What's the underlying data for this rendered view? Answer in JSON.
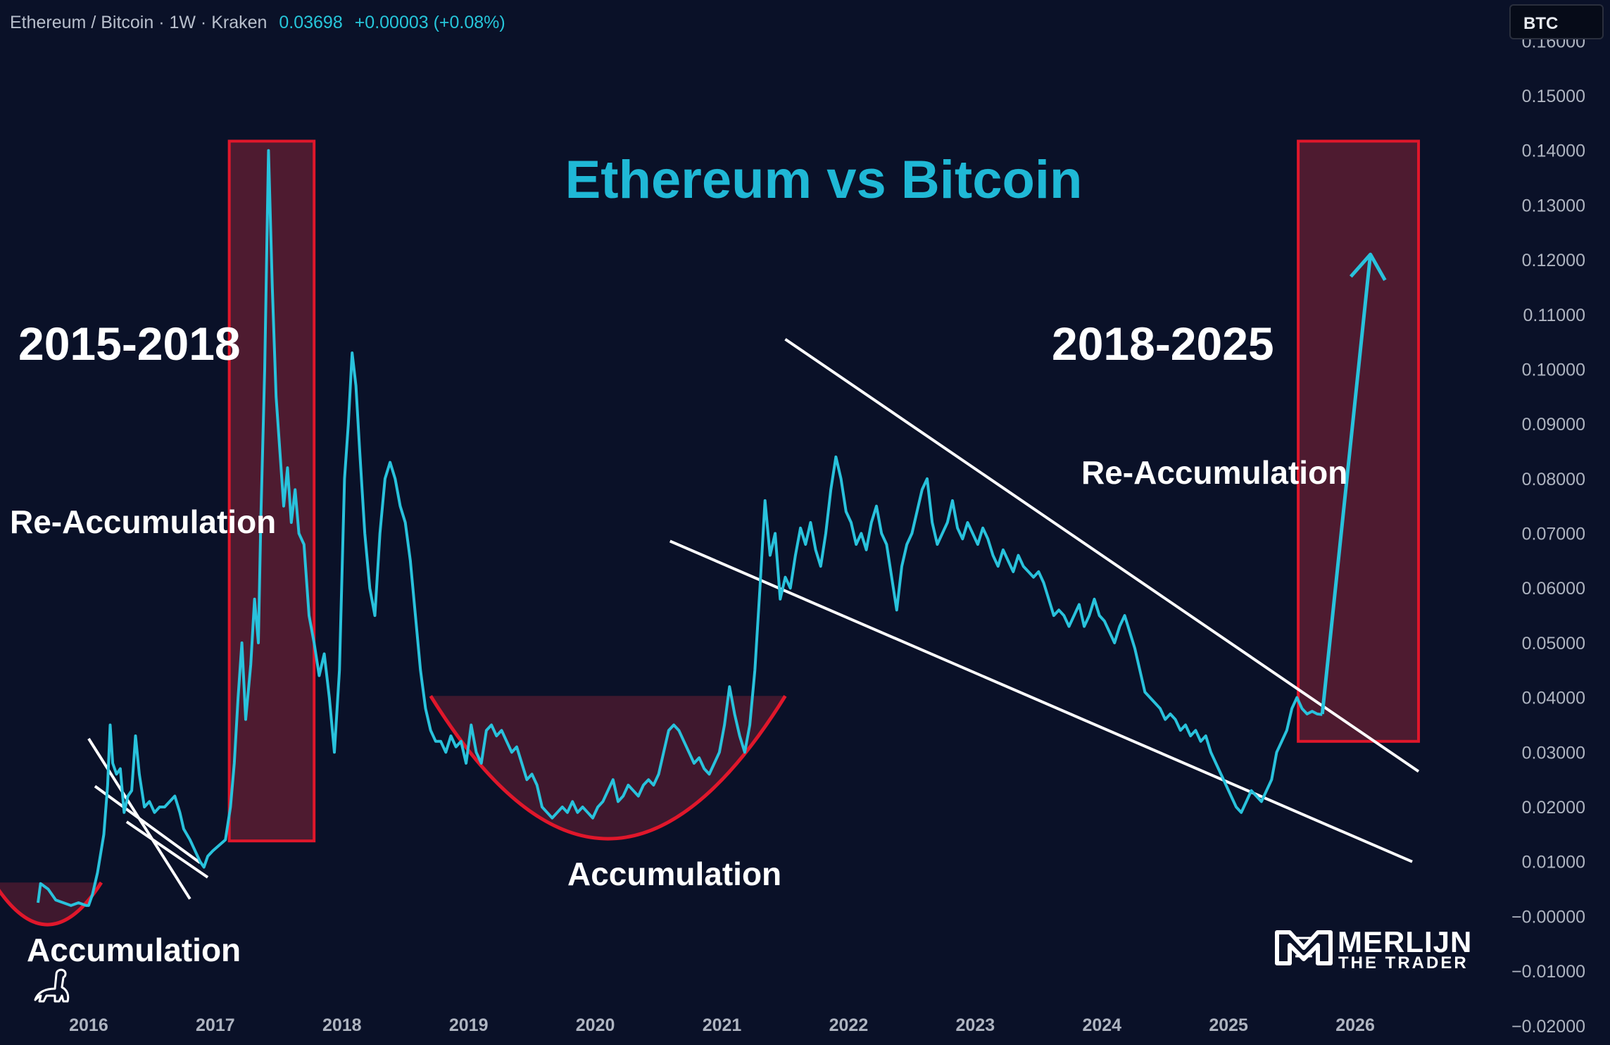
{
  "header": {
    "symbol_label": "Ethereum / Bitcoin · 1W · Kraken",
    "price": "0.03698",
    "change": "+0.00003 (+0.08%)",
    "currency_badge": "BTC"
  },
  "annotations": {
    "title": "Ethereum vs Bitcoin",
    "period_left": "2015-2018",
    "period_right": "2018-2025",
    "reacc_left": "Re-Accumulation",
    "reacc_right": "Re-Accumulation",
    "acc_left": "Accumulation",
    "acc_mid": "Accumulation"
  },
  "watermark": {
    "name": "MERLIJN",
    "subtitle": "THE TRADER"
  },
  "colors": {
    "background": "#0a1128",
    "line": "#29c2dc",
    "title": "#1fb8d6",
    "highlight_stroke": "#e0172b",
    "highlight_fill": "#6b1f33",
    "trendline": "#ffffff"
  },
  "chart_data": {
    "type": "line",
    "title": "Ethereum vs Bitcoin",
    "xlabel": "",
    "ylabel": "",
    "x_ticks": [
      "2016",
      "2017",
      "2018",
      "2019",
      "2020",
      "2021",
      "2022",
      "2023",
      "2024",
      "2025",
      "2026"
    ],
    "y_ticks": [
      "0.16000",
      "0.15000",
      "0.14000",
      "0.13000",
      "0.12000",
      "0.11000",
      "0.10000",
      "0.09000",
      "0.08000",
      "0.07000",
      "0.06000",
      "0.05000",
      "0.04000",
      "0.03000",
      "0.02000",
      "0.01000",
      "−0.00000",
      "−0.01000",
      "−0.02000"
    ],
    "xlim": [
      2015.3,
      2026.9
    ],
    "ylim": [
      -0.0235,
      0.1675
    ],
    "grid": false,
    "series": [
      {
        "values": [
          [
            2015.6,
            0.0025
          ],
          [
            2015.62,
            0.006
          ],
          [
            2015.68,
            0.005
          ],
          [
            2015.74,
            0.003
          ],
          [
            2015.8,
            0.0025
          ],
          [
            2015.86,
            0.002
          ],
          [
            2015.92,
            0.0025
          ],
          [
            2015.98,
            0.002
          ],
          [
            2016.0,
            0.002
          ],
          [
            2016.03,
            0.004
          ],
          [
            2016.07,
            0.008
          ],
          [
            2016.12,
            0.015
          ],
          [
            2016.15,
            0.024
          ],
          [
            2016.17,
            0.035
          ],
          [
            2016.19,
            0.028
          ],
          [
            2016.22,
            0.026
          ],
          [
            2016.25,
            0.027
          ],
          [
            2016.28,
            0.019
          ],
          [
            2016.31,
            0.022
          ],
          [
            2016.34,
            0.023
          ],
          [
            2016.37,
            0.033
          ],
          [
            2016.4,
            0.026
          ],
          [
            2016.44,
            0.02
          ],
          [
            2016.48,
            0.021
          ],
          [
            2016.52,
            0.019
          ],
          [
            2016.56,
            0.02
          ],
          [
            2016.6,
            0.02
          ],
          [
            2016.64,
            0.021
          ],
          [
            2016.68,
            0.022
          ],
          [
            2016.72,
            0.019
          ],
          [
            2016.75,
            0.016
          ],
          [
            2016.8,
            0.014
          ],
          [
            2016.84,
            0.012
          ],
          [
            2016.88,
            0.01
          ],
          [
            2016.91,
            0.009
          ],
          [
            2016.94,
            0.011
          ],
          [
            2016.98,
            0.012
          ],
          [
            2017.03,
            0.013
          ],
          [
            2017.08,
            0.014
          ],
          [
            2017.12,
            0.02
          ],
          [
            2017.15,
            0.028
          ],
          [
            2017.18,
            0.04
          ],
          [
            2017.21,
            0.05
          ],
          [
            2017.24,
            0.036
          ],
          [
            2017.28,
            0.046
          ],
          [
            2017.31,
            0.058
          ],
          [
            2017.34,
            0.05
          ],
          [
            2017.36,
            0.073
          ],
          [
            2017.39,
            0.1
          ],
          [
            2017.42,
            0.14
          ],
          [
            2017.45,
            0.115
          ],
          [
            2017.48,
            0.095
          ],
          [
            2017.51,
            0.085
          ],
          [
            2017.54,
            0.075
          ],
          [
            2017.57,
            0.082
          ],
          [
            2017.6,
            0.072
          ],
          [
            2017.63,
            0.078
          ],
          [
            2017.66,
            0.07
          ],
          [
            2017.7,
            0.068
          ],
          [
            2017.74,
            0.055
          ],
          [
            2017.78,
            0.05
          ],
          [
            2017.82,
            0.044
          ],
          [
            2017.86,
            0.048
          ],
          [
            2017.9,
            0.04
          ],
          [
            2017.94,
            0.03
          ],
          [
            2017.98,
            0.045
          ],
          [
            2018.02,
            0.08
          ],
          [
            2018.05,
            0.09
          ],
          [
            2018.08,
            0.103
          ],
          [
            2018.11,
            0.097
          ],
          [
            2018.14,
            0.085
          ],
          [
            2018.18,
            0.07
          ],
          [
            2018.22,
            0.06
          ],
          [
            2018.26,
            0.055
          ],
          [
            2018.3,
            0.07
          ],
          [
            2018.34,
            0.08
          ],
          [
            2018.38,
            0.083
          ],
          [
            2018.42,
            0.08
          ],
          [
            2018.46,
            0.075
          ],
          [
            2018.5,
            0.072
          ],
          [
            2018.54,
            0.065
          ],
          [
            2018.58,
            0.055
          ],
          [
            2018.62,
            0.045
          ],
          [
            2018.66,
            0.038
          ],
          [
            2018.7,
            0.034
          ],
          [
            2018.74,
            0.032
          ],
          [
            2018.78,
            0.032
          ],
          [
            2018.82,
            0.03
          ],
          [
            2018.86,
            0.033
          ],
          [
            2018.9,
            0.031
          ],
          [
            2018.94,
            0.032
          ],
          [
            2018.98,
            0.028
          ],
          [
            2019.02,
            0.035
          ],
          [
            2019.06,
            0.03
          ],
          [
            2019.1,
            0.028
          ],
          [
            2019.14,
            0.034
          ],
          [
            2019.18,
            0.035
          ],
          [
            2019.22,
            0.033
          ],
          [
            2019.26,
            0.034
          ],
          [
            2019.3,
            0.032
          ],
          [
            2019.34,
            0.03
          ],
          [
            2019.38,
            0.031
          ],
          [
            2019.42,
            0.028
          ],
          [
            2019.46,
            0.025
          ],
          [
            2019.5,
            0.026
          ],
          [
            2019.54,
            0.024
          ],
          [
            2019.58,
            0.02
          ],
          [
            2019.62,
            0.019
          ],
          [
            2019.66,
            0.018
          ],
          [
            2019.7,
            0.019
          ],
          [
            2019.74,
            0.02
          ],
          [
            2019.78,
            0.019
          ],
          [
            2019.82,
            0.021
          ],
          [
            2019.86,
            0.019
          ],
          [
            2019.9,
            0.02
          ],
          [
            2019.94,
            0.019
          ],
          [
            2019.98,
            0.018
          ],
          [
            2020.02,
            0.02
          ],
          [
            2020.06,
            0.021
          ],
          [
            2020.1,
            0.023
          ],
          [
            2020.14,
            0.025
          ],
          [
            2020.18,
            0.021
          ],
          [
            2020.22,
            0.022
          ],
          [
            2020.26,
            0.024
          ],
          [
            2020.3,
            0.023
          ],
          [
            2020.34,
            0.022
          ],
          [
            2020.38,
            0.024
          ],
          [
            2020.42,
            0.025
          ],
          [
            2020.46,
            0.024
          ],
          [
            2020.5,
            0.026
          ],
          [
            2020.54,
            0.03
          ],
          [
            2020.58,
            0.034
          ],
          [
            2020.62,
            0.035
          ],
          [
            2020.66,
            0.034
          ],
          [
            2020.7,
            0.032
          ],
          [
            2020.74,
            0.03
          ],
          [
            2020.78,
            0.028
          ],
          [
            2020.82,
            0.029
          ],
          [
            2020.86,
            0.027
          ],
          [
            2020.9,
            0.026
          ],
          [
            2020.94,
            0.028
          ],
          [
            2020.98,
            0.03
          ],
          [
            2021.02,
            0.035
          ],
          [
            2021.06,
            0.042
          ],
          [
            2021.1,
            0.037
          ],
          [
            2021.14,
            0.033
          ],
          [
            2021.18,
            0.03
          ],
          [
            2021.22,
            0.035
          ],
          [
            2021.26,
            0.045
          ],
          [
            2021.3,
            0.06
          ],
          [
            2021.34,
            0.076
          ],
          [
            2021.38,
            0.066
          ],
          [
            2021.42,
            0.07
          ],
          [
            2021.46,
            0.058
          ],
          [
            2021.5,
            0.062
          ],
          [
            2021.54,
            0.06
          ],
          [
            2021.58,
            0.066
          ],
          [
            2021.62,
            0.071
          ],
          [
            2021.66,
            0.068
          ],
          [
            2021.7,
            0.072
          ],
          [
            2021.74,
            0.067
          ],
          [
            2021.78,
            0.064
          ],
          [
            2021.82,
            0.07
          ],
          [
            2021.86,
            0.078
          ],
          [
            2021.9,
            0.084
          ],
          [
            2021.94,
            0.08
          ],
          [
            2021.98,
            0.074
          ],
          [
            2022.02,
            0.072
          ],
          [
            2022.06,
            0.068
          ],
          [
            2022.1,
            0.07
          ],
          [
            2022.14,
            0.067
          ],
          [
            2022.18,
            0.072
          ],
          [
            2022.22,
            0.075
          ],
          [
            2022.26,
            0.07
          ],
          [
            2022.3,
            0.068
          ],
          [
            2022.34,
            0.062
          ],
          [
            2022.38,
            0.056
          ],
          [
            2022.42,
            0.064
          ],
          [
            2022.46,
            0.068
          ],
          [
            2022.5,
            0.07
          ],
          [
            2022.54,
            0.074
          ],
          [
            2022.58,
            0.078
          ],
          [
            2022.62,
            0.08
          ],
          [
            2022.66,
            0.072
          ],
          [
            2022.7,
            0.068
          ],
          [
            2022.74,
            0.07
          ],
          [
            2022.78,
            0.072
          ],
          [
            2022.82,
            0.076
          ],
          [
            2022.86,
            0.071
          ],
          [
            2022.9,
            0.069
          ],
          [
            2022.94,
            0.072
          ],
          [
            2022.98,
            0.07
          ],
          [
            2023.02,
            0.068
          ],
          [
            2023.06,
            0.071
          ],
          [
            2023.1,
            0.069
          ],
          [
            2023.14,
            0.066
          ],
          [
            2023.18,
            0.064
          ],
          [
            2023.22,
            0.067
          ],
          [
            2023.26,
            0.065
          ],
          [
            2023.3,
            0.063
          ],
          [
            2023.34,
            0.066
          ],
          [
            2023.38,
            0.064
          ],
          [
            2023.42,
            0.063
          ],
          [
            2023.46,
            0.062
          ],
          [
            2023.5,
            0.063
          ],
          [
            2023.54,
            0.061
          ],
          [
            2023.58,
            0.058
          ],
          [
            2023.62,
            0.055
          ],
          [
            2023.66,
            0.056
          ],
          [
            2023.7,
            0.055
          ],
          [
            2023.74,
            0.053
          ],
          [
            2023.78,
            0.055
          ],
          [
            2023.82,
            0.057
          ],
          [
            2023.86,
            0.053
          ],
          [
            2023.9,
            0.055
          ],
          [
            2023.94,
            0.058
          ],
          [
            2023.98,
            0.055
          ],
          [
            2024.02,
            0.054
          ],
          [
            2024.06,
            0.052
          ],
          [
            2024.1,
            0.05
          ],
          [
            2024.14,
            0.053
          ],
          [
            2024.18,
            0.055
          ],
          [
            2024.22,
            0.052
          ],
          [
            2024.26,
            0.049
          ],
          [
            2024.3,
            0.045
          ],
          [
            2024.34,
            0.041
          ],
          [
            2024.38,
            0.04
          ],
          [
            2024.42,
            0.039
          ],
          [
            2024.46,
            0.038
          ],
          [
            2024.5,
            0.036
          ],
          [
            2024.54,
            0.037
          ],
          [
            2024.58,
            0.036
          ],
          [
            2024.62,
            0.034
          ],
          [
            2024.66,
            0.035
          ],
          [
            2024.7,
            0.033
          ],
          [
            2024.74,
            0.034
          ],
          [
            2024.78,
            0.032
          ],
          [
            2024.82,
            0.033
          ],
          [
            2024.86,
            0.03
          ],
          [
            2024.9,
            0.028
          ],
          [
            2024.94,
            0.026
          ],
          [
            2024.98,
            0.024
          ],
          [
            2025.02,
            0.022
          ],
          [
            2025.06,
            0.02
          ],
          [
            2025.1,
            0.019
          ],
          [
            2025.14,
            0.021
          ],
          [
            2025.18,
            0.023
          ],
          [
            2025.22,
            0.022
          ],
          [
            2025.26,
            0.021
          ],
          [
            2025.3,
            0.023
          ],
          [
            2025.34,
            0.025
          ],
          [
            2025.38,
            0.03
          ],
          [
            2025.42,
            0.032
          ],
          [
            2025.46,
            0.034
          ],
          [
            2025.5,
            0.038
          ],
          [
            2025.54,
            0.04
          ],
          [
            2025.58,
            0.038
          ],
          [
            2025.62,
            0.037
          ],
          [
            2025.66,
            0.0375
          ],
          [
            2025.7,
            0.037
          ],
          [
            2025.74,
            0.0369
          ]
        ]
      }
    ],
    "projection": [
      [
        2025.74,
        0.037
      ],
      [
        2026.12,
        0.121
      ]
    ],
    "highlight_boxes": [
      {
        "x": [
          2017.11,
          2017.78
        ],
        "y": [
          0.0138,
          0.1417
        ]
      },
      {
        "x": [
          2025.55,
          2026.5
        ],
        "y": [
          0.032,
          0.1417
        ]
      }
    ],
    "trendlines": [
      [
        [
          2016.0,
          0.0325
        ],
        [
          2016.8,
          0.0032
        ]
      ],
      [
        [
          2016.05,
          0.0238
        ],
        [
          2016.88,
          0.0098
        ]
      ],
      [
        [
          2016.3,
          0.0173
        ],
        [
          2016.94,
          0.00715
        ]
      ],
      [
        [
          2020.59,
          0.0686
        ],
        [
          2026.45,
          0.01
        ]
      ],
      [
        [
          2021.5,
          0.1055
        ],
        [
          2026.5,
          0.0265
        ]
      ]
    ],
    "accumulation_zones": [
      {
        "x": [
          2015.25,
          2016.1
        ],
        "top": 0.0062,
        "bottom": -0.0015
      },
      {
        "x": [
          2018.7,
          2021.5
        ],
        "top": 0.0403,
        "bottom": 0.0142
      }
    ]
  }
}
